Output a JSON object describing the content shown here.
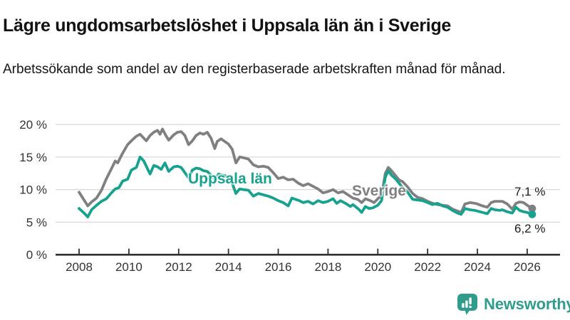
{
  "header": {
    "title": "Lägre ungdomsarbetslöshet i Uppsala län än i Sverige",
    "subtitle": "Arbetssökande som andel av den registerbaserade arbetskraften månad för månad."
  },
  "chart_data": {
    "type": "line",
    "title": "Lägre ungdomsarbetslöshet i Uppsala län än i Sverige",
    "xlabel": "",
    "ylabel": "",
    "unit": "%",
    "xlim": [
      2007.6,
      2027.2
    ],
    "ylim": [
      0,
      20
    ],
    "grid": "horizontal",
    "legend_position": "inline-labels",
    "x_ticks": [
      2008,
      2010,
      2012,
      2014,
      2016,
      2018,
      2020,
      2022,
      2024,
      2026
    ],
    "x_tick_labels": [
      "2008",
      "2010",
      "2012",
      "2014",
      "2016",
      "2018",
      "2020",
      "2022",
      "2024",
      "2026"
    ],
    "y_ticks": [
      0,
      5,
      10,
      15,
      20
    ],
    "y_tick_labels": [
      "0 %",
      "5 %",
      "10 %",
      "15 %",
      "20 %"
    ],
    "series": [
      {
        "name": "Sverige",
        "color": "#808083",
        "end_label": "7,1 %",
        "end_value": 7.1,
        "points": [
          [
            2008.0,
            9.6
          ],
          [
            2008.2,
            8.4
          ],
          [
            2008.35,
            7.5
          ],
          [
            2008.5,
            8.1
          ],
          [
            2008.7,
            8.7
          ],
          [
            2008.9,
            9.9
          ],
          [
            2009.1,
            11.7
          ],
          [
            2009.3,
            13.2
          ],
          [
            2009.45,
            14.4
          ],
          [
            2009.55,
            14.1
          ],
          [
            2009.75,
            15.6
          ],
          [
            2009.95,
            16.9
          ],
          [
            2010.1,
            17.5
          ],
          [
            2010.3,
            18.2
          ],
          [
            2010.45,
            18.5
          ],
          [
            2010.6,
            17.9
          ],
          [
            2010.7,
            17.5
          ],
          [
            2010.85,
            18.3
          ],
          [
            2011.0,
            18.8
          ],
          [
            2011.15,
            19.1
          ],
          [
            2011.25,
            18.5
          ],
          [
            2011.35,
            19.3
          ],
          [
            2011.5,
            18.2
          ],
          [
            2011.6,
            17.6
          ],
          [
            2011.8,
            18.4
          ],
          [
            2011.95,
            18.8
          ],
          [
            2012.1,
            18.9
          ],
          [
            2012.25,
            18.3
          ],
          [
            2012.4,
            16.9
          ],
          [
            2012.55,
            17.5
          ],
          [
            2012.7,
            18.3
          ],
          [
            2012.85,
            18.7
          ],
          [
            2013.0,
            18.5
          ],
          [
            2013.15,
            18.8
          ],
          [
            2013.3,
            17.9
          ],
          [
            2013.45,
            16.3
          ],
          [
            2013.55,
            17.4
          ],
          [
            2013.7,
            17.8
          ],
          [
            2013.85,
            17.4
          ],
          [
            2014.0,
            17.0
          ],
          [
            2014.15,
            16.2
          ],
          [
            2014.3,
            14.1
          ],
          [
            2014.45,
            15.0
          ],
          [
            2014.6,
            14.9
          ],
          [
            2014.8,
            14.7
          ],
          [
            2015.0,
            13.8
          ],
          [
            2015.2,
            13.5
          ],
          [
            2015.4,
            13.6
          ],
          [
            2015.6,
            13.4
          ],
          [
            2015.8,
            12.6
          ],
          [
            2016.0,
            11.7
          ],
          [
            2016.2,
            11.9
          ],
          [
            2016.4,
            11.5
          ],
          [
            2016.6,
            11.6
          ],
          [
            2016.8,
            11.0
          ],
          [
            2017.0,
            10.6
          ],
          [
            2017.2,
            10.9
          ],
          [
            2017.4,
            10.5
          ],
          [
            2017.6,
            10.1
          ],
          [
            2017.8,
            9.5
          ],
          [
            2018.0,
            9.7
          ],
          [
            2018.2,
            10.0
          ],
          [
            2018.4,
            9.5
          ],
          [
            2018.6,
            9.7
          ],
          [
            2018.8,
            9.2
          ],
          [
            2019.0,
            8.7
          ],
          [
            2019.2,
            8.5
          ],
          [
            2019.35,
            8.0
          ],
          [
            2019.5,
            8.6
          ],
          [
            2019.7,
            8.3
          ],
          [
            2019.85,
            8.0
          ],
          [
            2020.0,
            8.6
          ],
          [
            2020.15,
            9.1
          ],
          [
            2020.3,
            12.5
          ],
          [
            2020.42,
            13.4
          ],
          [
            2020.55,
            12.9
          ],
          [
            2020.7,
            12.2
          ],
          [
            2020.85,
            11.5
          ],
          [
            2021.0,
            11.2
          ],
          [
            2021.2,
            10.4
          ],
          [
            2021.4,
            9.4
          ],
          [
            2021.6,
            8.8
          ],
          [
            2021.8,
            8.6
          ],
          [
            2022.0,
            8.2
          ],
          [
            2022.2,
            7.9
          ],
          [
            2022.4,
            7.7
          ],
          [
            2022.6,
            7.6
          ],
          [
            2022.8,
            7.5
          ],
          [
            2023.0,
            7.0
          ],
          [
            2023.2,
            6.7
          ],
          [
            2023.35,
            6.5
          ],
          [
            2023.5,
            7.8
          ],
          [
            2023.7,
            8.0
          ],
          [
            2023.9,
            7.9
          ],
          [
            2024.0,
            7.8
          ],
          [
            2024.2,
            7.5
          ],
          [
            2024.4,
            7.3
          ],
          [
            2024.55,
            8.0
          ],
          [
            2024.7,
            8.2
          ],
          [
            2024.9,
            8.2
          ],
          [
            2025.0,
            8.2
          ],
          [
            2025.2,
            7.8
          ],
          [
            2025.4,
            7.0
          ],
          [
            2025.55,
            7.9
          ],
          [
            2025.7,
            8.1
          ],
          [
            2025.85,
            8.0
          ],
          [
            2026.0,
            7.6
          ],
          [
            2026.2,
            7.1
          ]
        ]
      },
      {
        "name": "Uppsala län",
        "color": "#16A28E",
        "end_label": "6,2 %",
        "end_value": 6.2,
        "points": [
          [
            2008.0,
            7.1
          ],
          [
            2008.2,
            6.4
          ],
          [
            2008.35,
            5.8
          ],
          [
            2008.5,
            6.9
          ],
          [
            2008.7,
            7.6
          ],
          [
            2008.9,
            8.2
          ],
          [
            2009.1,
            8.6
          ],
          [
            2009.3,
            9.5
          ],
          [
            2009.45,
            10.1
          ],
          [
            2009.6,
            10.3
          ],
          [
            2009.75,
            11.3
          ],
          [
            2009.95,
            11.6
          ],
          [
            2010.1,
            13.0
          ],
          [
            2010.3,
            13.4
          ],
          [
            2010.45,
            15.0
          ],
          [
            2010.6,
            14.4
          ],
          [
            2010.7,
            13.6
          ],
          [
            2010.85,
            12.4
          ],
          [
            2011.0,
            13.7
          ],
          [
            2011.15,
            13.5
          ],
          [
            2011.3,
            13.1
          ],
          [
            2011.45,
            14.1
          ],
          [
            2011.6,
            12.8
          ],
          [
            2011.8,
            13.5
          ],
          [
            2011.95,
            13.6
          ],
          [
            2012.1,
            13.4
          ],
          [
            2012.25,
            12.6
          ],
          [
            2012.4,
            11.8
          ],
          [
            2012.55,
            13.0
          ],
          [
            2012.7,
            13.3
          ],
          [
            2012.85,
            13.2
          ],
          [
            2013.0,
            12.9
          ],
          [
            2013.15,
            12.8
          ],
          [
            2013.3,
            12.2
          ],
          [
            2013.45,
            11.4
          ],
          [
            2013.6,
            12.4
          ],
          [
            2013.75,
            12.2
          ],
          [
            2013.9,
            12.1
          ],
          [
            2014.0,
            11.8
          ],
          [
            2014.15,
            11.0
          ],
          [
            2014.3,
            9.4
          ],
          [
            2014.45,
            10.1
          ],
          [
            2014.6,
            10.0
          ],
          [
            2014.8,
            9.9
          ],
          [
            2015.0,
            9.0
          ],
          [
            2015.2,
            9.4
          ],
          [
            2015.4,
            9.2
          ],
          [
            2015.6,
            9.0
          ],
          [
            2015.8,
            8.7
          ],
          [
            2016.0,
            8.3
          ],
          [
            2016.2,
            8.0
          ],
          [
            2016.4,
            7.5
          ],
          [
            2016.55,
            8.7
          ],
          [
            2016.7,
            8.5
          ],
          [
            2016.85,
            8.3
          ],
          [
            2017.0,
            8.0
          ],
          [
            2017.2,
            8.2
          ],
          [
            2017.4,
            7.8
          ],
          [
            2017.6,
            8.3
          ],
          [
            2017.8,
            8.0
          ],
          [
            2018.0,
            8.2
          ],
          [
            2018.2,
            8.6
          ],
          [
            2018.35,
            7.9
          ],
          [
            2018.5,
            8.3
          ],
          [
            2018.7,
            7.9
          ],
          [
            2018.9,
            7.4
          ],
          [
            2019.0,
            7.7
          ],
          [
            2019.2,
            7.1
          ],
          [
            2019.35,
            6.5
          ],
          [
            2019.5,
            7.4
          ],
          [
            2019.65,
            7.1
          ],
          [
            2019.8,
            7.2
          ],
          [
            2020.0,
            7.6
          ],
          [
            2020.15,
            8.3
          ],
          [
            2020.3,
            11.9
          ],
          [
            2020.42,
            12.9
          ],
          [
            2020.55,
            12.2
          ],
          [
            2020.7,
            11.7
          ],
          [
            2020.85,
            11.0
          ],
          [
            2021.0,
            10.3
          ],
          [
            2021.2,
            9.6
          ],
          [
            2021.4,
            8.5
          ],
          [
            2021.6,
            8.4
          ],
          [
            2021.8,
            8.3
          ],
          [
            2022.0,
            8.0
          ],
          [
            2022.2,
            7.7
          ],
          [
            2022.4,
            7.9
          ],
          [
            2022.6,
            7.5
          ],
          [
            2022.8,
            7.3
          ],
          [
            2023.0,
            6.8
          ],
          [
            2023.2,
            6.4
          ],
          [
            2023.35,
            6.2
          ],
          [
            2023.5,
            7.1
          ],
          [
            2023.7,
            6.9
          ],
          [
            2023.9,
            6.8
          ],
          [
            2024.0,
            6.7
          ],
          [
            2024.2,
            6.5
          ],
          [
            2024.4,
            6.3
          ],
          [
            2024.55,
            7.1
          ],
          [
            2024.7,
            6.9
          ],
          [
            2024.9,
            6.8
          ],
          [
            2025.0,
            6.9
          ],
          [
            2025.2,
            6.6
          ],
          [
            2025.4,
            6.4
          ],
          [
            2025.55,
            7.3
          ],
          [
            2025.7,
            6.8
          ],
          [
            2025.85,
            6.6
          ],
          [
            2026.0,
            6.5
          ],
          [
            2026.2,
            6.2
          ]
        ]
      }
    ],
    "colors": {
      "grid": "#d9d9d9",
      "axis": "#2e2e2e",
      "tick_text": "#333333"
    }
  },
  "footer": {
    "brand": "Newsworthy",
    "brand_color": "#2F9C8C"
  }
}
